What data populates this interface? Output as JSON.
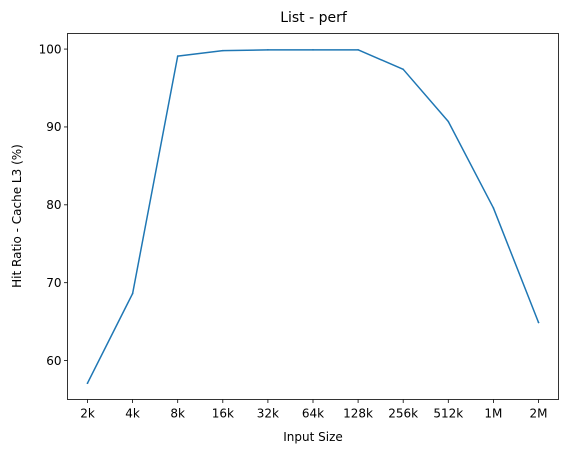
{
  "chart_data": {
    "type": "line",
    "title": "List - perf",
    "xlabel": "Input Size",
    "ylabel": "Hit Ratio - Cache L3 (%)",
    "categories": [
      "2k",
      "4k",
      "8k",
      "16k",
      "32k",
      "64k",
      "128k",
      "256k",
      "512k",
      "1M",
      "2M"
    ],
    "series": [
      {
        "values": [
          57.1,
          68.6,
          99.1,
          99.8,
          99.9,
          99.9,
          99.9,
          97.4,
          90.7,
          79.6,
          64.9
        ],
        "color": "#1f77b4"
      }
    ],
    "yticks": [
      60,
      70,
      80,
      90,
      100
    ],
    "ylim": [
      55.0,
      102.0
    ],
    "grid": false,
    "legend": "none"
  }
}
